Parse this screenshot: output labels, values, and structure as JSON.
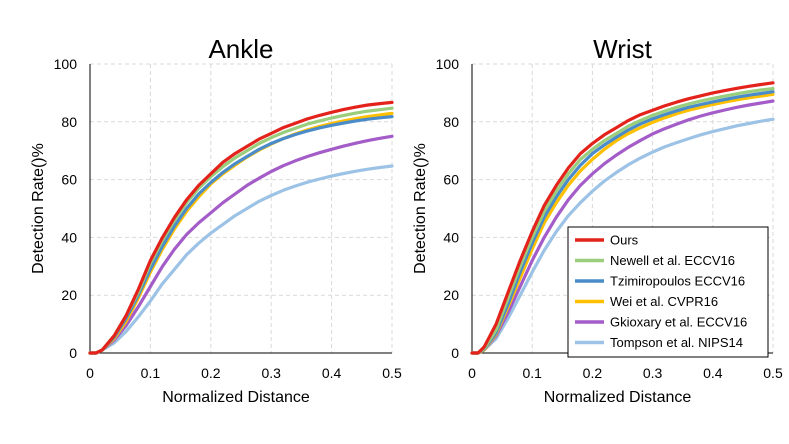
{
  "chart_data": [
    {
      "type": "line",
      "title": "Ankle",
      "xlabel": "Normalized Distance",
      "ylabel": "Detection Rate()%",
      "xlim": [
        0,
        0.5
      ],
      "ylim": [
        0,
        100
      ],
      "xticks": [
        "0",
        "0.1",
        "0.2",
        "0.3",
        "0.4",
        "0.5"
      ],
      "yticks": [
        "0",
        "20",
        "40",
        "60",
        "80",
        "100"
      ],
      "grid": true,
      "legend": "none",
      "x": [
        0,
        0.01,
        0.02,
        0.04,
        0.06,
        0.08,
        0.1,
        0.12,
        0.14,
        0.16,
        0.18,
        0.2,
        0.22,
        0.24,
        0.26,
        0.28,
        0.3,
        0.32,
        0.34,
        0.36,
        0.38,
        0.4,
        0.42,
        0.44,
        0.46,
        0.48,
        0.5
      ],
      "series": [
        {
          "name": "Ours",
          "color": "#e3231b",
          "values": [
            0,
            0,
            1,
            6,
            13,
            22,
            32,
            40,
            47,
            53,
            58,
            62,
            66,
            69,
            71.5,
            74,
            76,
            78,
            79.5,
            81,
            82.2,
            83.3,
            84.3,
            85.1,
            85.8,
            86.3,
            86.7
          ]
        },
        {
          "name": "Newell et al. ECCV16",
          "color": "#9acd7c",
          "values": [
            0,
            0,
            1,
            6,
            13,
            21,
            31,
            39,
            46,
            52,
            57,
            61,
            64.5,
            67.5,
            70,
            72.5,
            74.5,
            76.3,
            77.8,
            79.2,
            80.3,
            81.3,
            82.2,
            83,
            83.7,
            84.2,
            84.7
          ]
        },
        {
          "name": "Tzimiropoulos ECCV16",
          "color": "#4a8bc9",
          "values": [
            0,
            0,
            1,
            5.5,
            12,
            20,
            29,
            37,
            44,
            50,
            55,
            59,
            62.5,
            65.5,
            68,
            70.5,
            72.5,
            74.2,
            75.6,
            76.8,
            77.9,
            78.8,
            79.6,
            80.3,
            80.9,
            81.4,
            81.8
          ]
        },
        {
          "name": "Wei et al. CVPR16",
          "color": "#ffc000",
          "values": [
            0,
            0,
            1,
            5,
            11,
            19,
            28,
            36,
            43,
            49,
            54,
            58.5,
            62,
            65,
            67.8,
            70.2,
            72.3,
            74.2,
            75.8,
            77.2,
            78.4,
            79.4,
            80.3,
            81.1,
            81.8,
            82.4,
            82.9
          ]
        },
        {
          "name": "Gkioxary et al. ECCV16",
          "color": "#a35cc8",
          "values": [
            0,
            0,
            1,
            4.5,
            9.5,
            16,
            23,
            30,
            36,
            41,
            45,
            48.5,
            52,
            55,
            58,
            60.5,
            62.8,
            64.8,
            66.5,
            68,
            69.3,
            70.5,
            71.6,
            72.6,
            73.5,
            74.3,
            75
          ]
        },
        {
          "name": "Tompson et al. NIPS14",
          "color": "#9cc3e6",
          "values": [
            0,
            0,
            1,
            3.5,
            7.5,
            12.5,
            18,
            24,
            29,
            34,
            38,
            41.5,
            44.5,
            47.5,
            50,
            52.5,
            54.5,
            56.3,
            57.8,
            59.1,
            60.2,
            61.2,
            62.1,
            62.9,
            63.6,
            64.2,
            64.7
          ]
        }
      ]
    },
    {
      "type": "line",
      "title": "Wrist",
      "xlabel": "Normalized Distance",
      "ylabel": "Detection Rate()%",
      "xlim": [
        0,
        0.5
      ],
      "ylim": [
        0,
        100
      ],
      "xticks": [
        "0",
        "0.1",
        "0.2",
        "0.3",
        "0.4",
        "0.5"
      ],
      "yticks": [
        "0",
        "20",
        "40",
        "60",
        "80",
        "100"
      ],
      "grid": true,
      "legend": "bottom-right",
      "x": [
        0,
        0.01,
        0.02,
        0.04,
        0.06,
        0.08,
        0.1,
        0.12,
        0.14,
        0.16,
        0.18,
        0.2,
        0.22,
        0.24,
        0.26,
        0.28,
        0.3,
        0.32,
        0.34,
        0.36,
        0.38,
        0.4,
        0.42,
        0.44,
        0.46,
        0.48,
        0.5
      ],
      "series": [
        {
          "name": "Ours",
          "color": "#e3231b",
          "values": [
            0,
            0,
            2,
            10,
            21,
            32,
            42,
            51,
            58,
            64,
            69,
            72.5,
            75.5,
            78,
            80.5,
            82.5,
            84,
            85.5,
            86.8,
            88,
            89,
            90,
            90.8,
            91.6,
            92.3,
            92.9,
            93.5
          ]
        },
        {
          "name": "Newell et al. ECCV16",
          "color": "#9acd7c",
          "values": [
            0,
            0,
            1.5,
            8,
            19,
            30,
            40,
            49,
            56,
            62,
            67,
            70.5,
            73.5,
            76,
            78.5,
            80.5,
            82.2,
            83.7,
            85,
            86.2,
            87.2,
            88.1,
            88.9,
            89.7,
            90.4,
            91,
            91.5
          ]
        },
        {
          "name": "Tzimiropoulos ECCV16",
          "color": "#4a8bc9",
          "values": [
            0,
            0,
            1.2,
            7,
            17,
            28,
            38,
            47,
            54,
            60,
            65,
            69,
            72,
            74.7,
            77.2,
            79.3,
            81,
            82.5,
            83.8,
            85,
            86,
            86.9,
            87.7,
            88.5,
            89.2,
            89.8,
            90.4
          ]
        },
        {
          "name": "Wei et al. CVPR16",
          "color": "#ffc000",
          "values": [
            0,
            0,
            1,
            6.5,
            16,
            26,
            36,
            45,
            52,
            58,
            63,
            67,
            70.5,
            73.5,
            76,
            78,
            79.8,
            81.4,
            82.8,
            84,
            85,
            86,
            86.8,
            87.6,
            88.3,
            88.9,
            89.5
          ]
        },
        {
          "name": "Gkioxary et al. ECCV16",
          "color": "#a35cc8",
          "values": [
            0,
            0,
            1,
            6,
            14,
            23,
            32,
            40,
            47,
            53,
            58,
            62,
            65.5,
            68.5,
            71.2,
            73.6,
            75.8,
            77.6,
            79.2,
            80.7,
            82,
            83.1,
            84.1,
            85,
            85.8,
            86.5,
            87.2
          ]
        },
        {
          "name": "Tompson et al. NIPS14",
          "color": "#9cc3e6",
          "values": [
            0,
            0,
            1,
            5,
            12,
            20,
            28,
            35.5,
            42,
            47.5,
            52,
            56,
            59.5,
            62.5,
            65.2,
            67.5,
            69.5,
            71.3,
            72.8,
            74.2,
            75.5,
            76.6,
            77.6,
            78.6,
            79.4,
            80.2,
            80.9
          ]
        }
      ]
    }
  ]
}
